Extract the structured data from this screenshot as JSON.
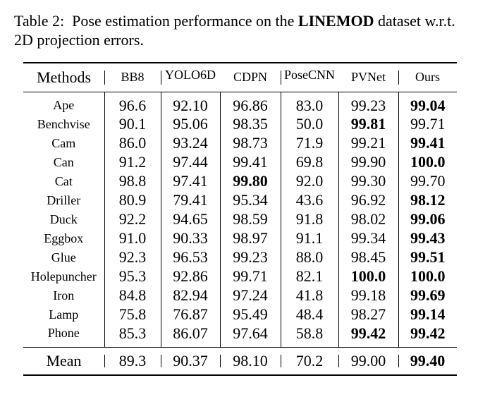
{
  "caption": {
    "label": "Table 2:",
    "text_before": "Pose estimation performance on the",
    "dataset": "LINEMOD",
    "text_after": "dataset w.r.t. 2D projection errors."
  },
  "table": {
    "header": [
      "Methods",
      "BB8",
      "YOLO6D",
      "CDPN",
      "PoseCNN",
      "PVNet",
      "Ours"
    ],
    "rows": [
      [
        "Ape",
        "96.6",
        "92.10",
        "96.86",
        "83.0",
        "99.23",
        "99.04"
      ],
      [
        "Benchvise",
        "90.1",
        "95.06",
        "98.35",
        "50.0",
        "99.81",
        "99.71"
      ],
      [
        "Cam",
        "86.0",
        "93.24",
        "98.73",
        "71.9",
        "99.21",
        "99.41"
      ],
      [
        "Can",
        "91.2",
        "97.44",
        "99.41",
        "69.8",
        "99.90",
        "100.0"
      ],
      [
        "Cat",
        "98.8",
        "97.41",
        "99.80",
        "92.0",
        "99.30",
        "99.70"
      ],
      [
        "Driller",
        "80.9",
        "79.41",
        "95.34",
        "43.6",
        "96.92",
        "98.12"
      ],
      [
        "Duck",
        "92.2",
        "94.65",
        "98.59",
        "91.8",
        "98.02",
        "99.06"
      ],
      [
        "Eggbox",
        "91.0",
        "90.33",
        "98.97",
        "91.1",
        "99.34",
        "99.43"
      ],
      [
        "Glue",
        "92.3",
        "96.53",
        "99.23",
        "88.0",
        "98.45",
        "99.51"
      ],
      [
        "Holepuncher",
        "95.3",
        "92.86",
        "99.71",
        "82.1",
        "100.0",
        "100.0"
      ],
      [
        "Iron",
        "84.8",
        "82.94",
        "97.24",
        "41.8",
        "99.18",
        "99.69"
      ],
      [
        "Lamp",
        "75.8",
        "76.87",
        "95.49",
        "48.4",
        "98.27",
        "99.14"
      ],
      [
        "Phone",
        "85.3",
        "86.07",
        "97.64",
        "58.8",
        "99.42",
        "99.42"
      ]
    ],
    "mean": [
      "Mean",
      "89.3",
      "90.37",
      "98.10",
      "70.2",
      "99.00",
      "99.40"
    ]
  }
}
